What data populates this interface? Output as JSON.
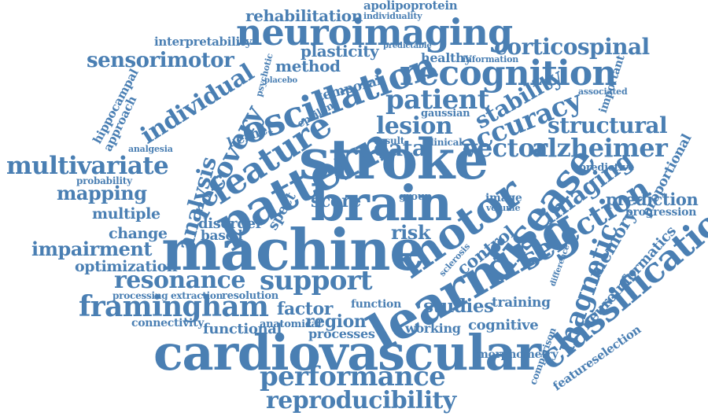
{
  "accent_color": "#4a7fb3",
  "words": [
    "stroke",
    "machine",
    "learning",
    "brain",
    "cardiovascular",
    "pattern",
    "motor",
    "disease",
    "neuroimaging",
    "recognition",
    "oscillation",
    "feature",
    "classification",
    "framingham",
    "performance",
    "reproducibility",
    "support",
    "resonance",
    "multivariate",
    "recovery",
    "selection",
    "accuracy",
    "patient",
    "lesion",
    "magnetic",
    "imaging",
    "individual",
    "alzheimer",
    "structural",
    "vector",
    "stability",
    "sensorimotor",
    "impairment",
    "analysis",
    "mapping",
    "corticospinal",
    "rehabilitation",
    "apolipoprotein",
    "individuality",
    "interpretability",
    "plasticity",
    "method",
    "healthy",
    "prediction",
    "optimization",
    "memory",
    "neuroinformatics",
    "control",
    "risk",
    "factor",
    "region",
    "studies",
    "change",
    "multiple",
    "data",
    "score",
    "training",
    "cognitive",
    "working",
    "processes",
    "functional",
    "connectivity",
    "anatomical",
    "resolution",
    "processing",
    "extraction",
    "disorder",
    "based",
    "spect",
    "kernel",
    "result",
    "clinical",
    "progression",
    "proportional",
    "featureselection",
    "comparison",
    "morphometry",
    "hippocampal",
    "approach",
    "probability",
    "predictive",
    "important",
    "associated",
    "temporal",
    "gaussian",
    "epsilon",
    "group",
    "image",
    "volume",
    "function",
    "psychotic",
    "predictable",
    "information",
    "placebo",
    "sclerosis",
    "difference",
    "analgesia"
  ]
}
